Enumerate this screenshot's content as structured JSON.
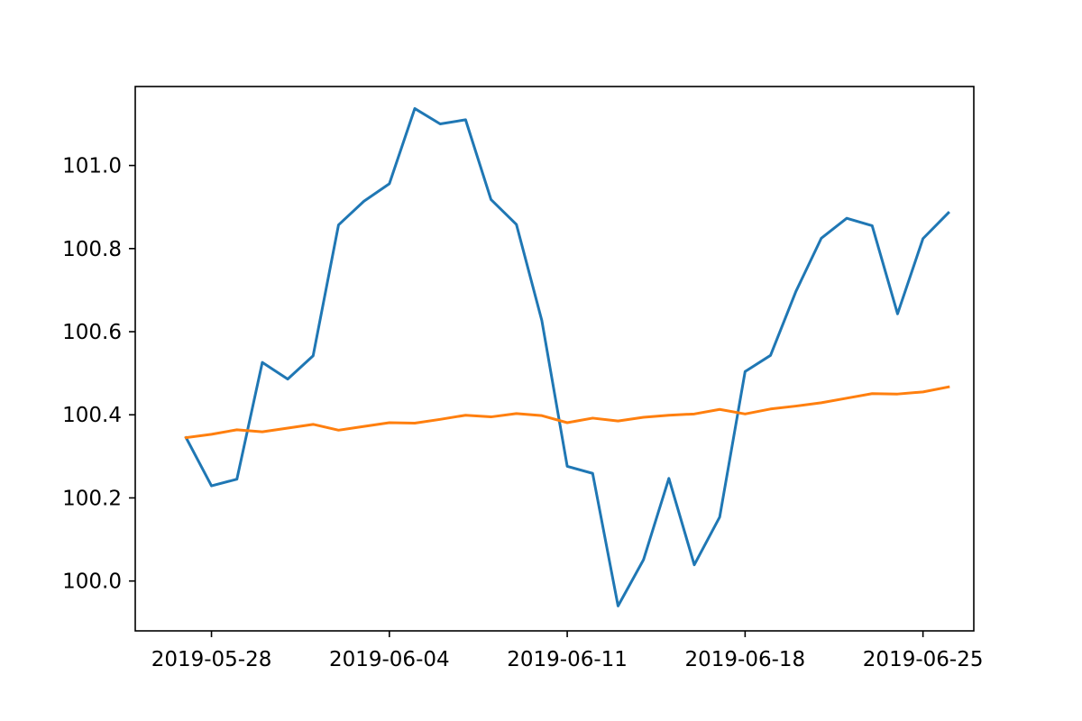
{
  "chart_data": {
    "type": "line",
    "title": "",
    "xlabel": "",
    "ylabel": "",
    "grid": false,
    "xlim": [
      "2019-05-25",
      "2019-06-27"
    ],
    "ylim": [
      99.88,
      101.19
    ],
    "x_ticks": [
      "2019-05-28",
      "2019-06-04",
      "2019-06-11",
      "2019-06-18",
      "2019-06-25"
    ],
    "y_ticks": [
      "100.0",
      "100.2",
      "100.4",
      "100.6",
      "100.8",
      "101.0"
    ],
    "x": [
      "2019-05-27",
      "2019-05-28",
      "2019-05-29",
      "2019-05-30",
      "2019-05-31",
      "2019-06-01",
      "2019-06-02",
      "2019-06-03",
      "2019-06-04",
      "2019-06-05",
      "2019-06-06",
      "2019-06-07",
      "2019-06-08",
      "2019-06-09",
      "2019-06-10",
      "2019-06-11",
      "2019-06-12",
      "2019-06-13",
      "2019-06-14",
      "2019-06-15",
      "2019-06-16",
      "2019-06-17",
      "2019-06-18",
      "2019-06-19",
      "2019-06-20",
      "2019-06-21",
      "2019-06-22",
      "2019-06-23",
      "2019-06-24",
      "2019-06-25",
      "2019-06-26"
    ],
    "series": [
      {
        "color": "#1f77b4",
        "values": [
          100.345,
          100.229,
          100.245,
          100.526,
          100.486,
          100.542,
          100.857,
          100.914,
          100.956,
          101.137,
          101.1,
          101.11,
          100.918,
          100.858,
          100.627,
          100.276,
          100.259,
          99.94,
          100.051,
          100.247,
          100.039,
          100.154,
          100.504,
          100.543,
          100.697,
          100.825,
          100.873,
          100.855,
          100.643,
          100.824,
          100.886
        ]
      },
      {
        "color": "#ff7f0e",
        "values": [
          100.345,
          100.353,
          100.364,
          100.359,
          100.368,
          100.377,
          100.363,
          100.372,
          100.381,
          100.38,
          100.389,
          100.399,
          100.395,
          100.403,
          100.398,
          100.381,
          100.392,
          100.385,
          100.394,
          100.399,
          100.402,
          100.413,
          100.402,
          100.414,
          100.421,
          100.429,
          100.44,
          100.451,
          100.45,
          100.455,
          100.467
        ]
      }
    ]
  }
}
